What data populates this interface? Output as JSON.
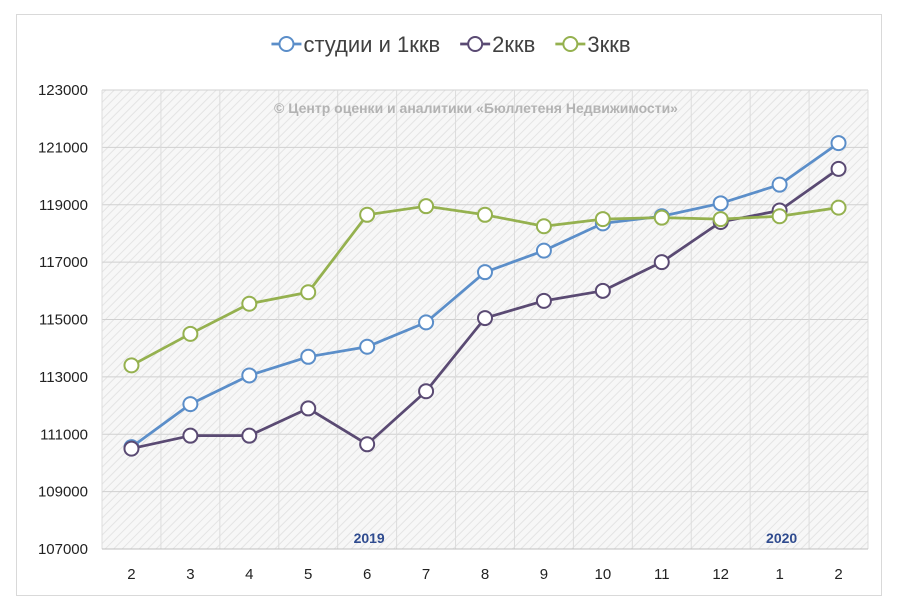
{
  "chart_data": {
    "type": "line",
    "categories": [
      "2",
      "3",
      "4",
      "5",
      "6",
      "7",
      "8",
      "9",
      "10",
      "11",
      "12",
      "1",
      "2"
    ],
    "year_markers": [
      {
        "label": "2019",
        "category_index": 4
      },
      {
        "label": "2020",
        "category_index": 11
      }
    ],
    "series": [
      {
        "name": "студии и 1ккв",
        "color": "#5b8ec9",
        "values": [
          110550,
          112050,
          113050,
          113700,
          114050,
          114900,
          116650,
          117400,
          118350,
          118600,
          119050,
          119700,
          121150
        ]
      },
      {
        "name": "2ккв",
        "color": "#5a4a73",
        "values": [
          110500,
          110950,
          110950,
          111900,
          110650,
          112500,
          115050,
          115650,
          116000,
          117000,
          118400,
          118800,
          120250
        ]
      },
      {
        "name": "3ккв",
        "color": "#95b14f",
        "values": [
          113400,
          114500,
          115550,
          115950,
          118650,
          118950,
          118650,
          118250,
          118500,
          118550,
          118500,
          118600,
          118900
        ]
      }
    ],
    "yticks": [
      "107000",
      "109000",
      "111000",
      "113000",
      "115000",
      "117000",
      "119000",
      "121000",
      "123000"
    ],
    "ylim": [
      107000,
      123000
    ],
    "grid": true,
    "legend_position": "top",
    "watermark": "© Центр оценки и аналитики «Бюллетеня Недвижимости»"
  }
}
